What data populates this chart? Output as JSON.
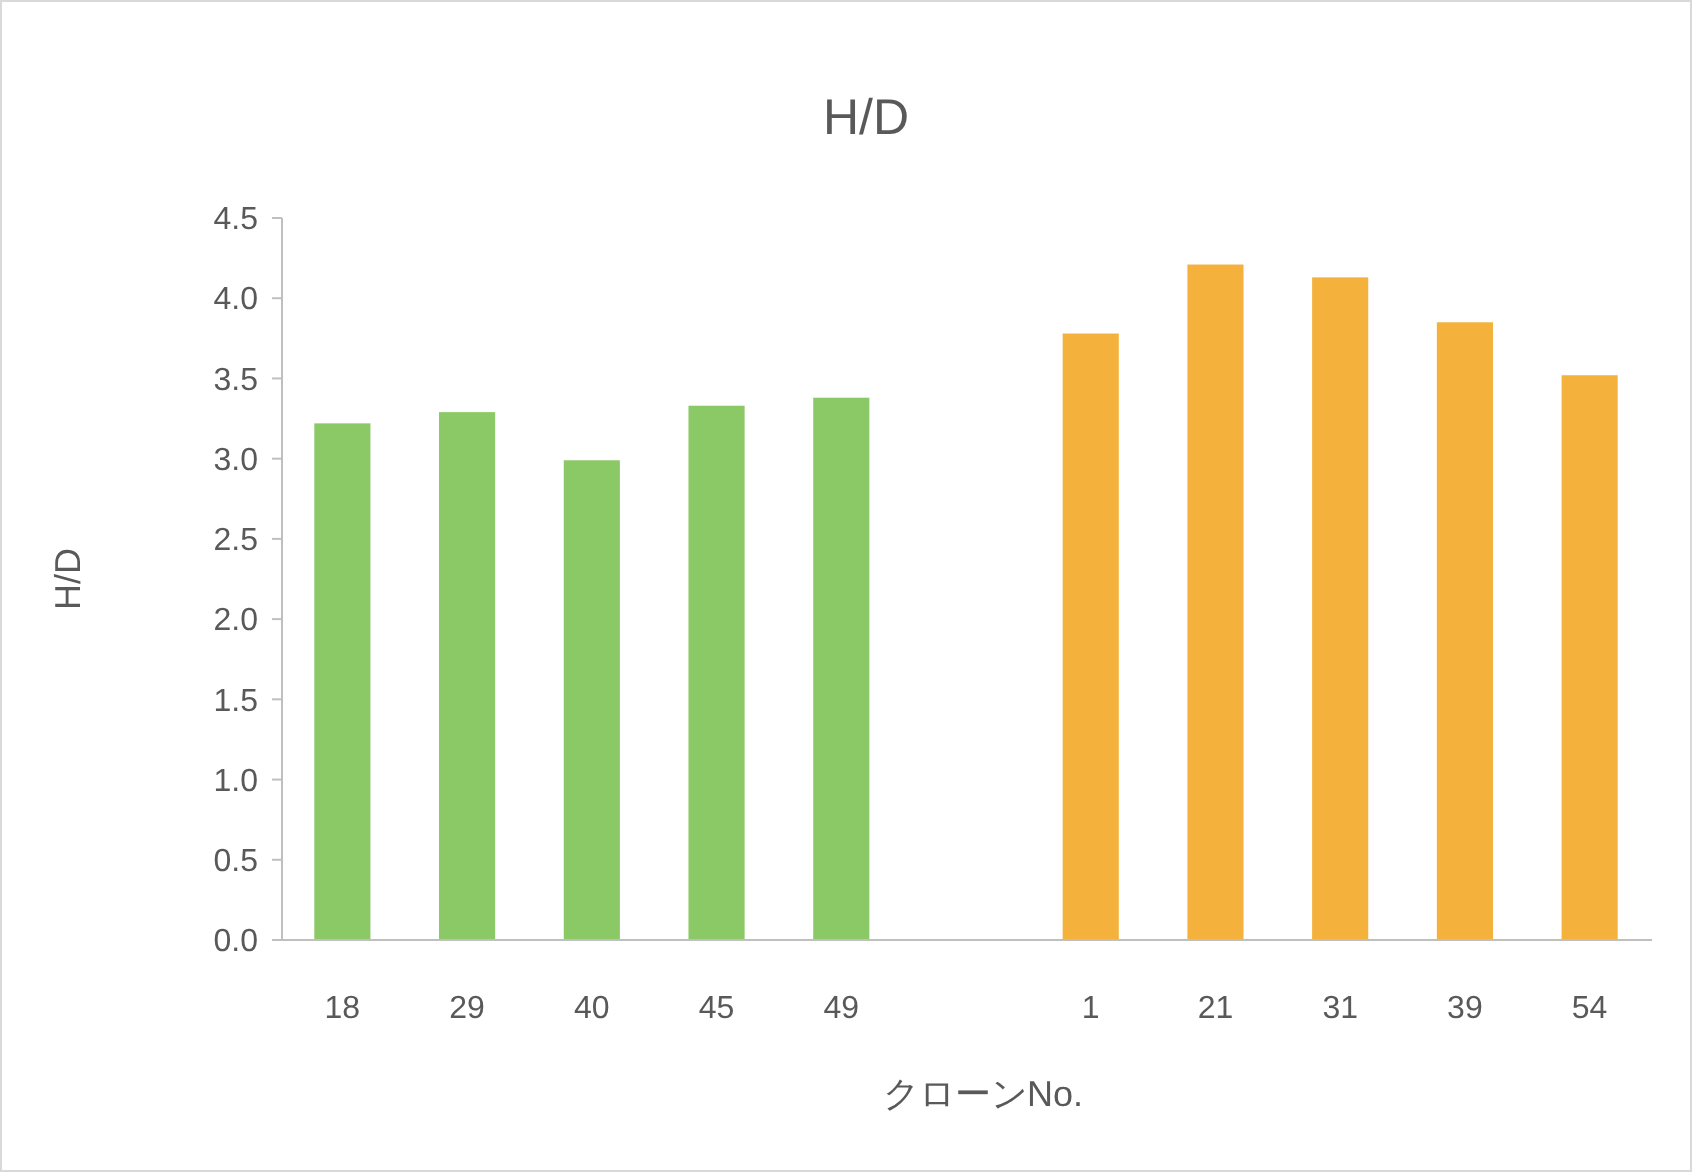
{
  "chart_data": {
    "type": "bar",
    "title": "H/D",
    "xlabel": "クローンNo.",
    "ylabel": "H/D",
    "categories": [
      "18",
      "29",
      "40",
      "45",
      "49",
      null,
      "1",
      "21",
      "31",
      "39",
      "54"
    ],
    "values": [
      3.22,
      3.29,
      2.99,
      3.33,
      3.38,
      null,
      3.78,
      4.21,
      4.13,
      3.85,
      3.52
    ],
    "colors": [
      "#8bc866",
      "#8bc866",
      "#8bc866",
      "#8bc866",
      "#8bc866",
      null,
      "#f4b23c",
      "#f4b23c",
      "#f4b23c",
      "#f4b23c",
      "#f4b23c"
    ],
    "ylim": [
      0,
      4.5
    ],
    "yticks": [
      {
        "value": 0,
        "label": "0.0"
      },
      {
        "value": 0.5,
        "label": "0.5"
      },
      {
        "value": 1,
        "label": "1.0"
      },
      {
        "value": 1.5,
        "label": "1.5"
      },
      {
        "value": 2,
        "label": "2.0"
      },
      {
        "value": 2.5,
        "label": "2.5"
      },
      {
        "value": 3,
        "label": "3.0"
      },
      {
        "value": 3.5,
        "label": "3.5"
      },
      {
        "value": 4,
        "label": "4.0"
      },
      {
        "value": 4.5,
        "label": "4.5"
      }
    ],
    "grid": false
  }
}
